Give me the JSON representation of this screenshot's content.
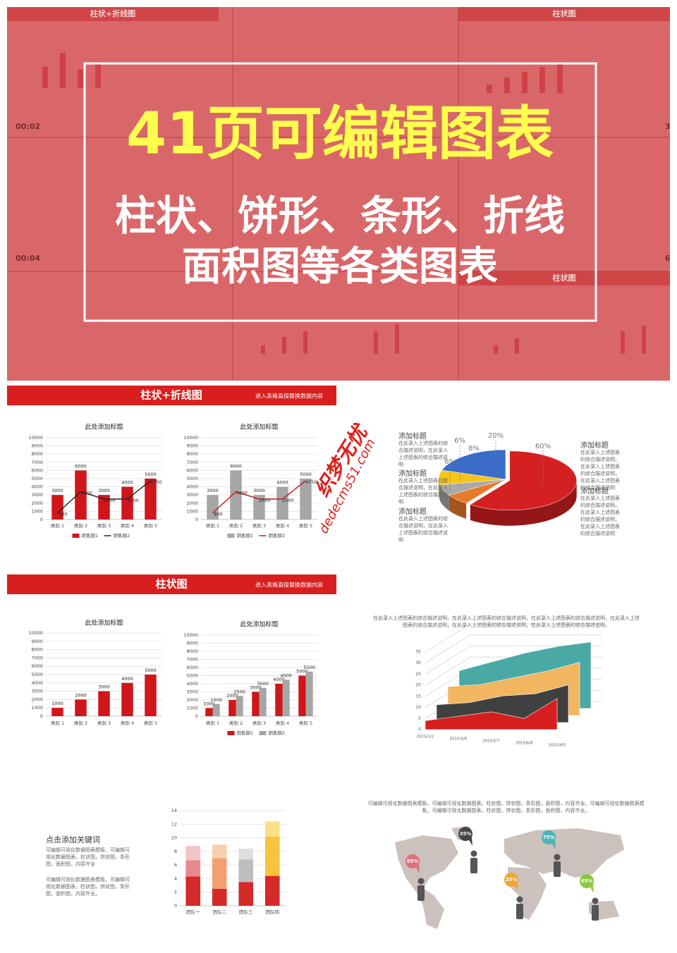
{
  "thumbnails": {
    "headers": [
      "柱状+折线图",
      "柱状图",
      "柱状图"
    ],
    "labels": [
      "00:02",
      "00:04",
      "3",
      "6"
    ]
  },
  "banner": {
    "title": "41页可编辑图表",
    "line1": "柱状、饼形、条形、折线",
    "line2": "面积图等各类图表"
  },
  "slides": [
    {
      "header": "柱状+折线图",
      "subheader": "进入表格直接替换数据内容"
    },
    {
      "header": "柱状图",
      "subheader": "进入表格直接替换数据内容"
    }
  ],
  "watermark": [
    "织梦无忧",
    "dedecms51.com"
  ],
  "pie_text": {
    "left": [
      {
        "title": "添加标题",
        "text": "在此录入上述图表的综合描述说明，在此录入上述图表的综合描述说明"
      },
      {
        "title": "添加标题",
        "text": "在此录入上述图表的综合描述说明，在此录入上述图表的综合描述说明"
      },
      {
        "title": "添加标题",
        "text": "在此录入上述图表的综合描述说明，在此录入上述图表的综合描述说明"
      }
    ],
    "right": [
      {
        "title": "添加标题",
        "text": "在此录入上述图表的综合描述说明，在此录入上述图表的综合描述说明，在此录入上述图表的综合描述说明"
      },
      {
        "title": "添加标题",
        "text": "在此录入上述图表的综合描述说明，在此录入上述图表的综合描述说明，在此录入上述图表的综合描述说明"
      }
    ]
  },
  "area_text": "在此录入上述图表的综合描述说明，在此录入上述图表的综合描述说明，在此录入上述图表的综合描述说明，在此录入上述图表的综合描述说明，在此录入上述图表的综合描述说明，在此录入上述图表的综合描述说明。",
  "keyword": {
    "title": "点击添加关键词",
    "paragraphs": [
      "可编辑可视化数据图表模板，可编辑可视化数据图表，柱状图，饼状图，条形图，面积图，内容齐全",
      "可编辑可视化数据图表模板，可编辑可视化数据图表，柱状图，饼状图，条形图，面积图，内容齐全。"
    ]
  },
  "map": {
    "text": "可编辑可视化数据图表模板，可编辑可视化数据图表，柱状图，饼状图，条形图，面积图，内容齐全。可编辑可视化数据图表模板，可编辑可视化数据图表，柱状图，饼状图，条形图，面积图，内容齐全。",
    "pins": [
      {
        "label": "55%",
        "color": "#e0707c"
      },
      {
        "label": "35%",
        "color": "#454545"
      },
      {
        "label": "75%",
        "color": "#4ab4b4"
      },
      {
        "label": "25%",
        "color": "#f0a532"
      },
      {
        "label": "65%",
        "color": "#8cc63e"
      }
    ]
  },
  "chart_data": [
    {
      "type": "combo",
      "title": "此处添加标题",
      "categories": [
        "类别 1",
        "类别 2",
        "类别 3",
        "类别 4",
        "类别 5"
      ],
      "series": [
        {
          "name": "销售额1",
          "type": "bar",
          "color": "#d0161b",
          "values": [
            3000,
            6000,
            3000,
            4000,
            5000
          ]
        },
        {
          "name": "销售额2",
          "type": "line",
          "color": "#222222",
          "values": [
            800,
            3400,
            2500,
            2500,
            4750
          ]
        }
      ],
      "ylim": [
        0,
        10000
      ],
      "yticks": [
        0,
        1000,
        2000,
        3000,
        4000,
        5000,
        6000,
        7000,
        8000,
        9000,
        10000
      ],
      "grid": true,
      "data_labels": true,
      "legend": "bottom"
    },
    {
      "type": "combo",
      "title": "此处添加标题",
      "categories": [
        "类别 1",
        "类别 2",
        "类别 3",
        "类别 4",
        "类别 5"
      ],
      "series": [
        {
          "name": "销售额1",
          "type": "bar",
          "color": "#a6a6a6",
          "values": [
            3000,
            6000,
            3000,
            4000,
            5000
          ]
        },
        {
          "name": "销售额2",
          "type": "line",
          "color": "#c8161d",
          "values": [
            800,
            3400,
            2500,
            2500,
            4750
          ]
        }
      ],
      "ylim": [
        0,
        10000
      ],
      "yticks": [
        0,
        1000,
        2000,
        3000,
        4000,
        5000,
        6000,
        7000,
        8000,
        9000,
        10000
      ],
      "grid": true,
      "data_labels": true,
      "legend": "bottom"
    },
    {
      "type": "pie",
      "values": [
        60,
        6,
        6,
        8,
        20
      ],
      "value_labels": [
        "60%",
        "6%",
        "6%",
        "8%",
        "20%"
      ],
      "colors": [
        "#d42020",
        "#e87b2a",
        "#a9a9a9",
        "#f5c518",
        "#3a6cc8"
      ]
    },
    {
      "type": "bar",
      "title": "此处添加标题",
      "categories": [
        "类别 1",
        "类别 2",
        "类别 3",
        "类别 4",
        "类别 5"
      ],
      "values": [
        1000,
        2000,
        3000,
        4000,
        5000
      ],
      "color": "#d0161b",
      "ylim": [
        0,
        10000
      ],
      "yticks": [
        0,
        1000,
        2000,
        3000,
        4000,
        5000,
        6000,
        7000,
        8000,
        9000,
        10000
      ],
      "grid": true,
      "data_labels": true
    },
    {
      "type": "bar",
      "title": "此处添加标题",
      "categories": [
        "类别 1",
        "类别 2",
        "类别 3",
        "类别 4",
        "类别 5"
      ],
      "series": [
        {
          "name": "销售额1",
          "color": "#d0161b",
          "values": [
            1000,
            2000,
            3000,
            4000,
            5000
          ]
        },
        {
          "name": "销售额2",
          "color": "#a6a6a6",
          "values": [
            1500,
            2500,
            3500,
            4500,
            5500
          ]
        }
      ],
      "ylim": [
        0,
        10000
      ],
      "yticks": [
        0,
        1000,
        2000,
        3000,
        4000,
        5000,
        6000,
        7000,
        8000,
        9000,
        10000
      ],
      "grid": true,
      "data_labels": true,
      "legend": "bottom"
    },
    {
      "type": "area",
      "categories": [
        "2015/1/2",
        "2015/3/6",
        "2015/5/7",
        "2015/6/8",
        "2015/9/5"
      ],
      "series": [
        {
          "color": "#d61e1e",
          "values": [
            4,
            6,
            8,
            5,
            14
          ]
        },
        {
          "color": "#404040",
          "values": [
            8,
            9,
            12,
            13,
            17
          ]
        },
        {
          "color": "#f2b560",
          "values": [
            13,
            14,
            17,
            20,
            24
          ]
        },
        {
          "color": "#4aa9a4",
          "values": [
            17,
            21,
            25,
            28,
            30
          ]
        }
      ],
      "ylim": [
        0,
        35
      ],
      "yticks": [
        0,
        5,
        10,
        15,
        20,
        25,
        30,
        35
      ],
      "grid": true
    },
    {
      "type": "bar",
      "stacked": true,
      "categories": [
        "团队一",
        "团队二",
        "团队三",
        "团队四"
      ],
      "series": [
        {
          "values": [
            4.3,
            2.5,
            3.5,
            4.4
          ],
          "colors": [
            "#d42a2a",
            "#d42a2a",
            "#d42a2a",
            "#d42a2a"
          ]
        },
        {
          "values": [
            2.4,
            4.5,
            3.3,
            5.8
          ],
          "colors": [
            "#e8888c",
            "#f2a070",
            "#bdbdbd",
            "#f6c440"
          ]
        },
        {
          "values": [
            2.1,
            2.0,
            1.6,
            2.2
          ],
          "colors": [
            "#f3c4c6",
            "#f8d0b0",
            "#dedede",
            "#fbe08a"
          ]
        }
      ],
      "ylim": [
        0,
        14
      ],
      "yticks": [
        0,
        2,
        4,
        6,
        8,
        10,
        12,
        14
      ],
      "grid": true
    }
  ]
}
